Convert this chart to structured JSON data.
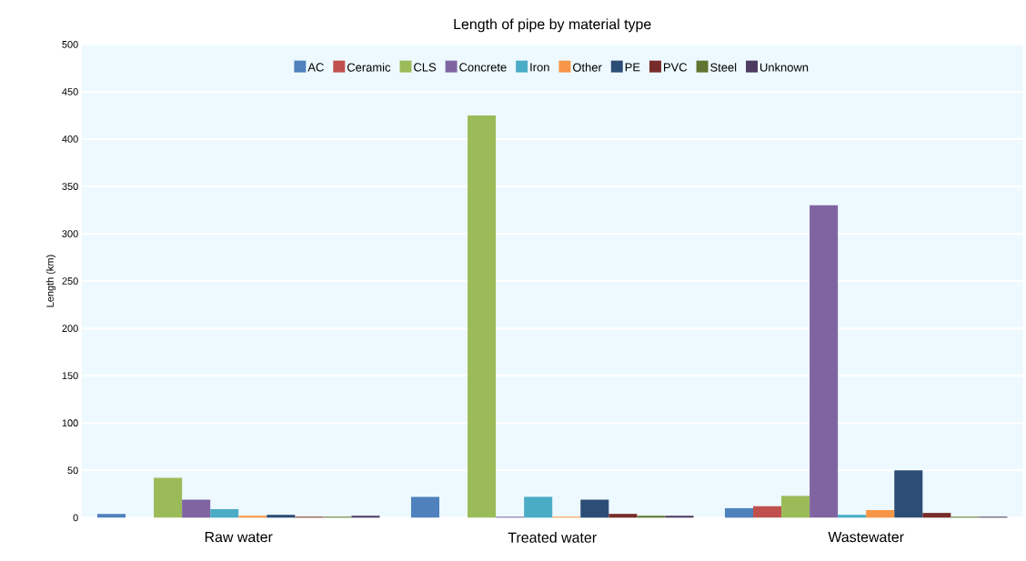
{
  "chart_data": {
    "type": "bar",
    "title": "Length of pipe by material type",
    "ylabel": "Length (km)",
    "categories": [
      "Raw water",
      "Treated water",
      "Wastewater"
    ],
    "series": [
      {
        "name": "AC",
        "color": "#4f81bd",
        "values": [
          4,
          22,
          10
        ]
      },
      {
        "name": "Ceramic",
        "color": "#c0504d",
        "values": [
          null,
          null,
          12
        ]
      },
      {
        "name": "CLS",
        "color": "#9bbb59",
        "values": [
          42,
          425,
          23
        ]
      },
      {
        "name": "Concrete",
        "color": "#8064a2",
        "values": [
          19,
          1,
          330
        ]
      },
      {
        "name": "Iron",
        "color": "#4bacc6",
        "values": [
          9,
          22,
          3
        ]
      },
      {
        "name": "Other",
        "color": "#f79646",
        "values": [
          2,
          1,
          8
        ]
      },
      {
        "name": "PE",
        "color": "#2c4d75",
        "values": [
          3,
          19,
          50
        ]
      },
      {
        "name": "PVC",
        "color": "#772c2a",
        "values": [
          1,
          4,
          5
        ]
      },
      {
        "name": "Steel",
        "color": "#5f7530",
        "values": [
          1,
          2,
          1
        ]
      },
      {
        "name": "Unknown",
        "color": "#4d3b62",
        "values": [
          2,
          2,
          1
        ]
      }
    ],
    "ylim": [
      0,
      500
    ],
    "yticks": [
      0,
      50,
      100,
      150,
      200,
      250,
      300,
      350,
      400,
      450,
      500
    ],
    "grid": "y",
    "legend": "top"
  }
}
